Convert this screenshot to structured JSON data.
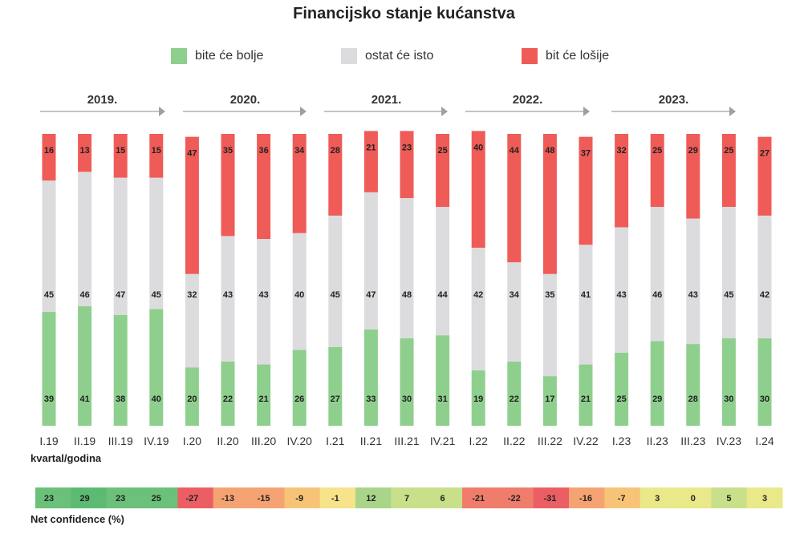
{
  "title": "Financijsko stanje kućanstva",
  "legend": [
    {
      "label": "bite će bolje",
      "color": "#8ecf8e"
    },
    {
      "label": "ostat će isto",
      "color": "#dcdcdf"
    },
    {
      "label": "bit će lošije",
      "color": "#ef5b57"
    }
  ],
  "years": [
    "2019.",
    "2020.",
    "2021.",
    "2022.",
    "2023."
  ],
  "xlabel": "kvartal/godina",
  "net_label": "Net confidence (%)",
  "chart_data": {
    "type": "bar",
    "stacked": true,
    "categories": [
      "I.19",
      "II.19",
      "III.19",
      "IV.19",
      "I.20",
      "II.20",
      "III.20",
      "IV.20",
      "I.21",
      "II.21",
      "III.21",
      "IV.21",
      "I.22",
      "II.22",
      "III.22",
      "IV.22",
      "I.23",
      "II.23",
      "III.23",
      "IV.23",
      "I.24"
    ],
    "series": [
      {
        "name": "bite će bolje",
        "values": [
          39,
          41,
          38,
          40,
          20,
          22,
          21,
          26,
          27,
          33,
          30,
          31,
          19,
          22,
          17,
          21,
          25,
          29,
          28,
          30,
          30
        ]
      },
      {
        "name": "ostat će isto",
        "values": [
          45,
          46,
          47,
          45,
          32,
          43,
          43,
          40,
          45,
          47,
          48,
          44,
          42,
          34,
          35,
          41,
          43,
          46,
          43,
          45,
          42
        ]
      },
      {
        "name": "bit će lošije",
        "values": [
          16,
          13,
          15,
          15,
          47,
          35,
          36,
          34,
          28,
          21,
          23,
          25,
          40,
          44,
          48,
          37,
          32,
          25,
          29,
          25,
          27
        ]
      }
    ],
    "net_confidence": [
      23,
      29,
      23,
      25,
      -27,
      -13,
      -15,
      -9,
      -1,
      12,
      7,
      6,
      -21,
      -22,
      -31,
      -16,
      -7,
      3,
      0,
      5,
      3
    ],
    "ylim": [
      0,
      100
    ]
  }
}
